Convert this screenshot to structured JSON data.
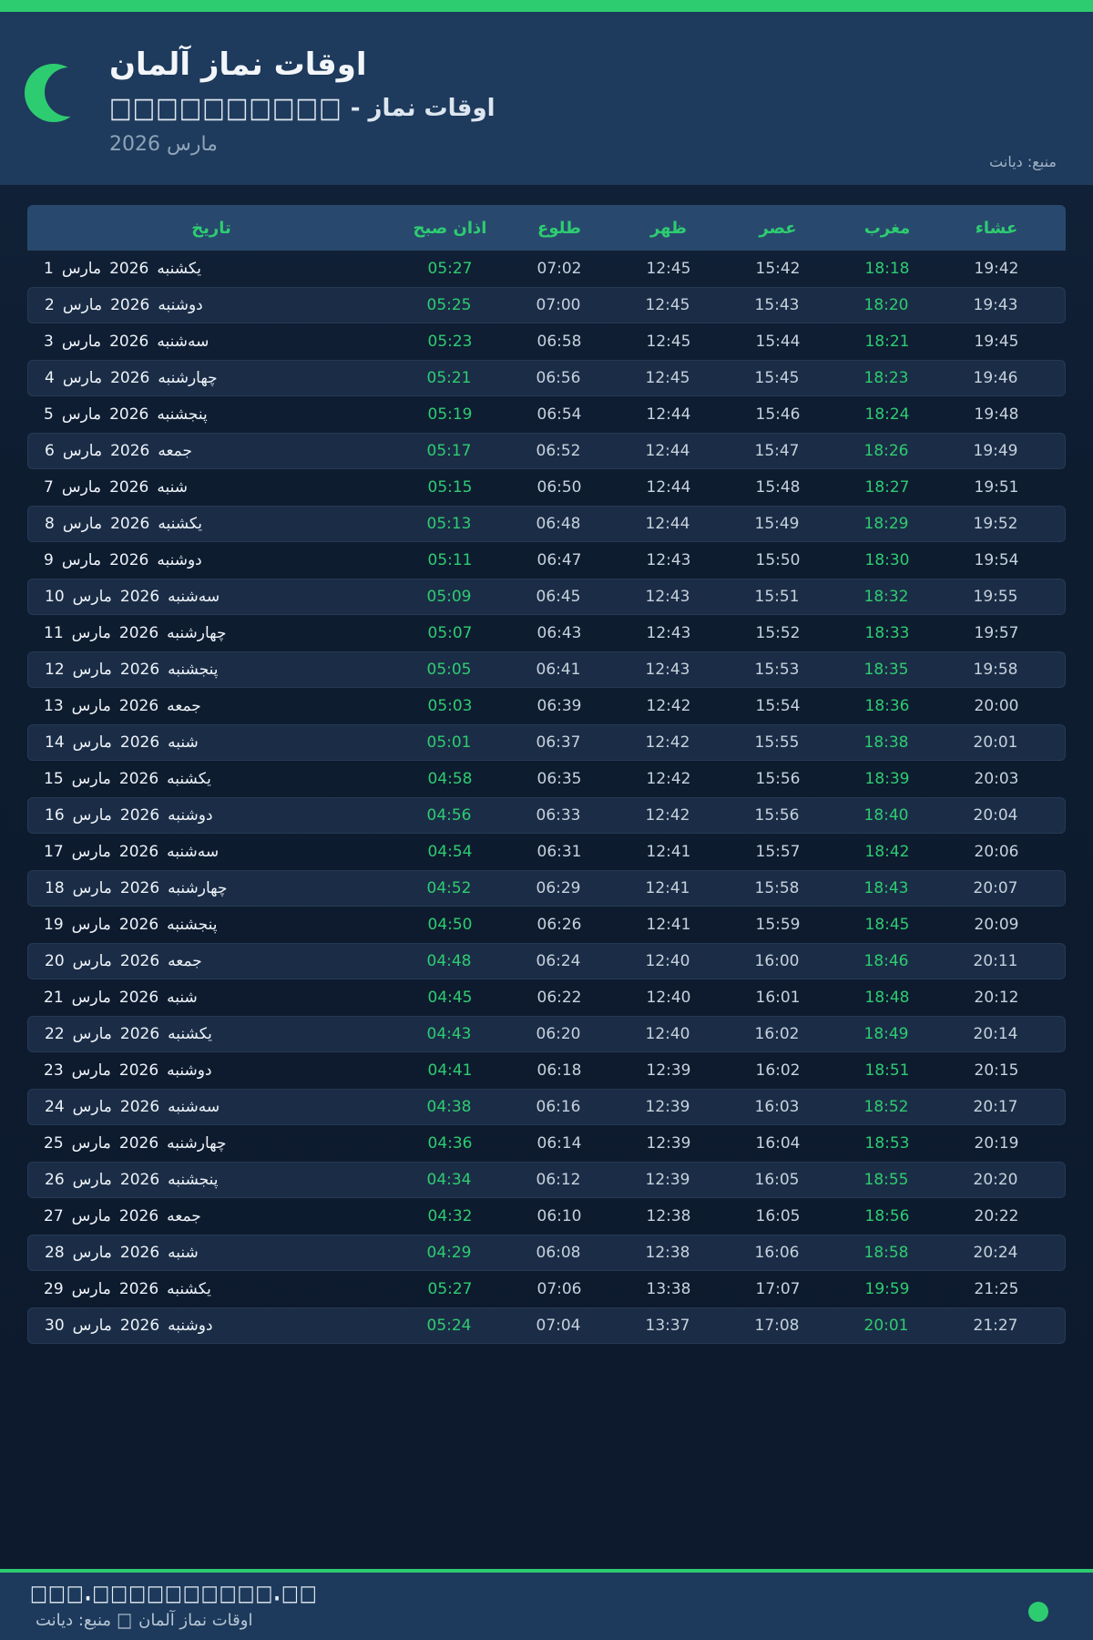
{
  "header": {
    "title": "اوقات نماز آلمان",
    "subtitle_prefix": "اوقات نماز - ",
    "subtitle_boxes": "□□□□□□□□□□",
    "month_label": "مارس 2026",
    "source_label": "منبع: دیانت",
    "accent_color": "#2ecc71",
    "header_bg": "#1e3a5c"
  },
  "table": {
    "columns": [
      "تاریخ",
      "اذان صبح",
      "طلوع",
      "ظهر",
      "عصر",
      "مغرب",
      "عشاء"
    ],
    "month_label": "مارس",
    "year_label": "2026",
    "rows": [
      {
        "day": "1",
        "weekday": "یکشنبه",
        "fajr": "05:27",
        "sunrise": "07:02",
        "dhuhr": "12:45",
        "asr": "15:42",
        "maghrib": "18:18",
        "isha": "19:42"
      },
      {
        "day": "2",
        "weekday": "دوشنبه",
        "fajr": "05:25",
        "sunrise": "07:00",
        "dhuhr": "12:45",
        "asr": "15:43",
        "maghrib": "18:20",
        "isha": "19:43"
      },
      {
        "day": "3",
        "weekday": "سه‌شنبه",
        "fajr": "05:23",
        "sunrise": "06:58",
        "dhuhr": "12:45",
        "asr": "15:44",
        "maghrib": "18:21",
        "isha": "19:45"
      },
      {
        "day": "4",
        "weekday": "چهارشنبه",
        "fajr": "05:21",
        "sunrise": "06:56",
        "dhuhr": "12:45",
        "asr": "15:45",
        "maghrib": "18:23",
        "isha": "19:46"
      },
      {
        "day": "5",
        "weekday": "پنجشنبه",
        "fajr": "05:19",
        "sunrise": "06:54",
        "dhuhr": "12:44",
        "asr": "15:46",
        "maghrib": "18:24",
        "isha": "19:48"
      },
      {
        "day": "6",
        "weekday": "جمعه",
        "fajr": "05:17",
        "sunrise": "06:52",
        "dhuhr": "12:44",
        "asr": "15:47",
        "maghrib": "18:26",
        "isha": "19:49"
      },
      {
        "day": "7",
        "weekday": "شنبه",
        "fajr": "05:15",
        "sunrise": "06:50",
        "dhuhr": "12:44",
        "asr": "15:48",
        "maghrib": "18:27",
        "isha": "19:51"
      },
      {
        "day": "8",
        "weekday": "یکشنبه",
        "fajr": "05:13",
        "sunrise": "06:48",
        "dhuhr": "12:44",
        "asr": "15:49",
        "maghrib": "18:29",
        "isha": "19:52"
      },
      {
        "day": "9",
        "weekday": "دوشنبه",
        "fajr": "05:11",
        "sunrise": "06:47",
        "dhuhr": "12:43",
        "asr": "15:50",
        "maghrib": "18:30",
        "isha": "19:54"
      },
      {
        "day": "10",
        "weekday": "سه‌شنبه",
        "fajr": "05:09",
        "sunrise": "06:45",
        "dhuhr": "12:43",
        "asr": "15:51",
        "maghrib": "18:32",
        "isha": "19:55"
      },
      {
        "day": "11",
        "weekday": "چهارشنبه",
        "fajr": "05:07",
        "sunrise": "06:43",
        "dhuhr": "12:43",
        "asr": "15:52",
        "maghrib": "18:33",
        "isha": "19:57"
      },
      {
        "day": "12",
        "weekday": "پنجشنبه",
        "fajr": "05:05",
        "sunrise": "06:41",
        "dhuhr": "12:43",
        "asr": "15:53",
        "maghrib": "18:35",
        "isha": "19:58"
      },
      {
        "day": "13",
        "weekday": "جمعه",
        "fajr": "05:03",
        "sunrise": "06:39",
        "dhuhr": "12:42",
        "asr": "15:54",
        "maghrib": "18:36",
        "isha": "20:00"
      },
      {
        "day": "14",
        "weekday": "شنبه",
        "fajr": "05:01",
        "sunrise": "06:37",
        "dhuhr": "12:42",
        "asr": "15:55",
        "maghrib": "18:38",
        "isha": "20:01"
      },
      {
        "day": "15",
        "weekday": "یکشنبه",
        "fajr": "04:58",
        "sunrise": "06:35",
        "dhuhr": "12:42",
        "asr": "15:56",
        "maghrib": "18:39",
        "isha": "20:03"
      },
      {
        "day": "16",
        "weekday": "دوشنبه",
        "fajr": "04:56",
        "sunrise": "06:33",
        "dhuhr": "12:42",
        "asr": "15:56",
        "maghrib": "18:40",
        "isha": "20:04"
      },
      {
        "day": "17",
        "weekday": "سه‌شنبه",
        "fajr": "04:54",
        "sunrise": "06:31",
        "dhuhr": "12:41",
        "asr": "15:57",
        "maghrib": "18:42",
        "isha": "20:06"
      },
      {
        "day": "18",
        "weekday": "چهارشنبه",
        "fajr": "04:52",
        "sunrise": "06:29",
        "dhuhr": "12:41",
        "asr": "15:58",
        "maghrib": "18:43",
        "isha": "20:07"
      },
      {
        "day": "19",
        "weekday": "پنجشنبه",
        "fajr": "04:50",
        "sunrise": "06:26",
        "dhuhr": "12:41",
        "asr": "15:59",
        "maghrib": "18:45",
        "isha": "20:09"
      },
      {
        "day": "20",
        "weekday": "جمعه",
        "fajr": "04:48",
        "sunrise": "06:24",
        "dhuhr": "12:40",
        "asr": "16:00",
        "maghrib": "18:46",
        "isha": "20:11"
      },
      {
        "day": "21",
        "weekday": "شنبه",
        "fajr": "04:45",
        "sunrise": "06:22",
        "dhuhr": "12:40",
        "asr": "16:01",
        "maghrib": "18:48",
        "isha": "20:12"
      },
      {
        "day": "22",
        "weekday": "یکشنبه",
        "fajr": "04:43",
        "sunrise": "06:20",
        "dhuhr": "12:40",
        "asr": "16:02",
        "maghrib": "18:49",
        "isha": "20:14"
      },
      {
        "day": "23",
        "weekday": "دوشنبه",
        "fajr": "04:41",
        "sunrise": "06:18",
        "dhuhr": "12:39",
        "asr": "16:02",
        "maghrib": "18:51",
        "isha": "20:15"
      },
      {
        "day": "24",
        "weekday": "سه‌شنبه",
        "fajr": "04:38",
        "sunrise": "06:16",
        "dhuhr": "12:39",
        "asr": "16:03",
        "maghrib": "18:52",
        "isha": "20:17"
      },
      {
        "day": "25",
        "weekday": "چهارشنبه",
        "fajr": "04:36",
        "sunrise": "06:14",
        "dhuhr": "12:39",
        "asr": "16:04",
        "maghrib": "18:53",
        "isha": "20:19"
      },
      {
        "day": "26",
        "weekday": "پنجشنبه",
        "fajr": "04:34",
        "sunrise": "06:12",
        "dhuhr": "12:39",
        "asr": "16:05",
        "maghrib": "18:55",
        "isha": "20:20"
      },
      {
        "day": "27",
        "weekday": "جمعه",
        "fajr": "04:32",
        "sunrise": "06:10",
        "dhuhr": "12:38",
        "asr": "16:05",
        "maghrib": "18:56",
        "isha": "20:22"
      },
      {
        "day": "28",
        "weekday": "شنبه",
        "fajr": "04:29",
        "sunrise": "06:08",
        "dhuhr": "12:38",
        "asr": "16:06",
        "maghrib": "18:58",
        "isha": "20:24"
      },
      {
        "day": "29",
        "weekday": "یکشنبه",
        "fajr": "05:27",
        "sunrise": "07:06",
        "dhuhr": "13:38",
        "asr": "17:07",
        "maghrib": "19:59",
        "isha": "21:25"
      },
      {
        "day": "30",
        "weekday": "دوشنبه",
        "fajr": "05:24",
        "sunrise": "07:04",
        "dhuhr": "13:37",
        "asr": "17:08",
        "maghrib": "20:01",
        "isha": "21:27"
      }
    ]
  },
  "footer": {
    "url_boxes": "□□□.□□□□□□□□□□.□□",
    "credit_prefix": "اوقات نماز آلمان",
    "credit_separator": "□",
    "credit_source": "منبع: دیانت",
    "status_dot_color": "#2ecc71"
  }
}
